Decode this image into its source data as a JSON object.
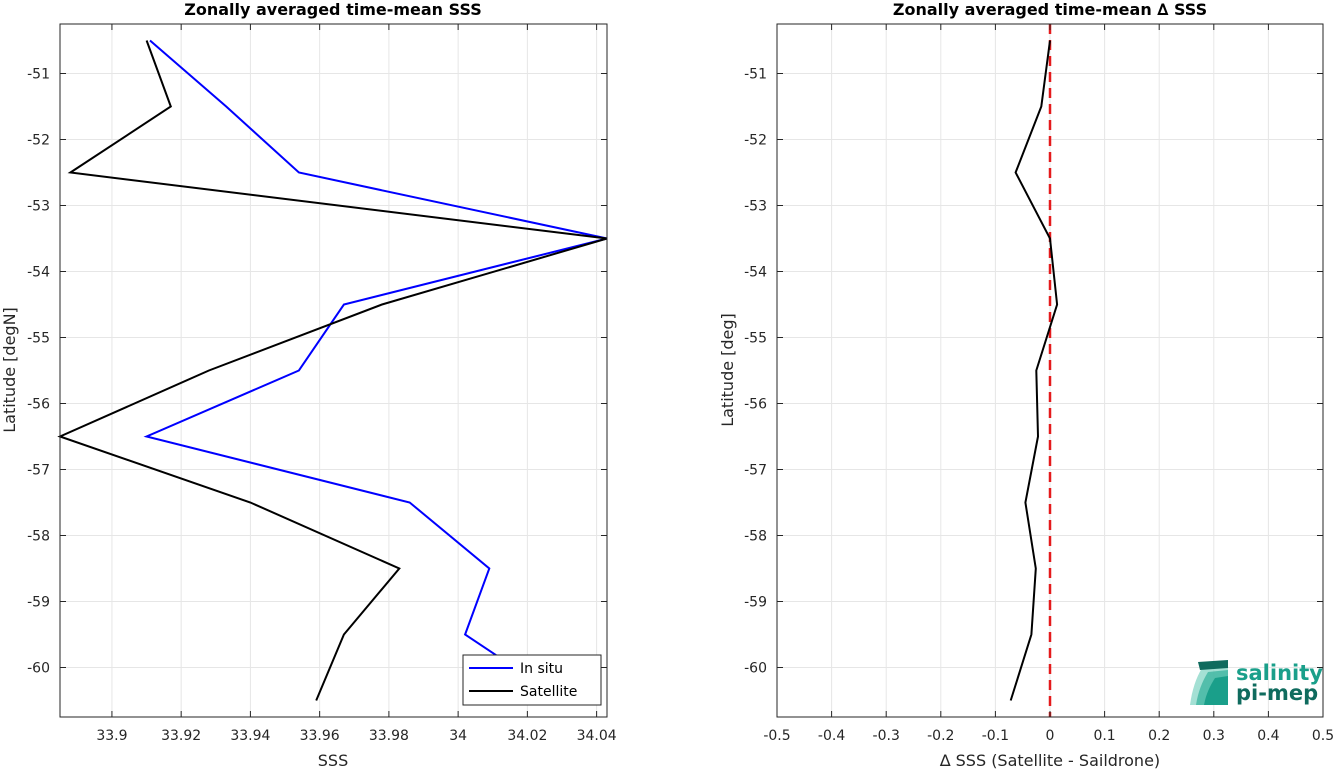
{
  "colors": {
    "in_situ": "#0000ff",
    "satellite": "#000000",
    "delta": "#000000",
    "zero_line": "#e41a1c",
    "grid": "#e6e6e6",
    "logo_teal": "#1a9f8a",
    "logo_dark": "#0f6b5e"
  },
  "logo": {
    "line1": "salinity",
    "line2": "pi-mep",
    "icon": "salinity-waves-icon"
  },
  "chart_data": [
    {
      "type": "line",
      "title": "Zonally averaged time-mean SSS",
      "xlabel": "SSS",
      "ylabel": "Latitude [degN]",
      "xlim": [
        33.885,
        34.043
      ],
      "ylim": [
        -60.75,
        -50.25
      ],
      "grid": true,
      "legend_position": "bottom-right",
      "xticks": [
        33.9,
        33.92,
        33.94,
        33.96,
        33.98,
        34,
        34.02,
        34.04
      ],
      "xtick_labels": [
        "33.9",
        "33.92",
        "33.94",
        "33.96",
        "33.98",
        "34",
        "34.02",
        "34.04"
      ],
      "yticks": [
        -51,
        -52,
        -53,
        -54,
        -55,
        -56,
        -57,
        -58,
        -59,
        -60
      ],
      "ytick_labels": [
        "-51",
        "-52",
        "-53",
        "-54",
        "-55",
        "-56",
        "-57",
        "-58",
        "-59",
        "-60"
      ],
      "series": [
        {
          "name": "In situ",
          "color_key": "in_situ",
          "x": [
            33.911,
            33.933,
            33.954,
            34.043,
            33.967,
            33.954,
            33.91,
            33.986,
            34.009,
            34.002,
            34.012
          ],
          "y": [
            -50.5,
            -51.5,
            -52.5,
            -53.5,
            -54.5,
            -55.5,
            -56.5,
            -57.5,
            -58.5,
            -59.5,
            -59.85
          ]
        },
        {
          "name": "Satellite",
          "color_key": "satellite",
          "x": [
            33.91,
            33.917,
            33.888,
            34.043,
            33.978,
            33.928,
            33.885,
            33.94,
            33.983,
            33.967,
            33.959
          ],
          "y": [
            -50.5,
            -51.5,
            -52.5,
            -53.5,
            -54.5,
            -55.5,
            -56.5,
            -57.5,
            -58.5,
            -59.5,
            -60.5
          ]
        }
      ]
    },
    {
      "type": "line",
      "title": "Zonally averaged time-mean ∆ SSS",
      "xlabel": "∆ SSS (Satellite - Saildrone)",
      "ylabel": "Latitude [deg]",
      "xlim": [
        -0.5,
        0.5
      ],
      "ylim": [
        -60.75,
        -50.25
      ],
      "grid": true,
      "xticks": [
        -0.5,
        -0.4,
        -0.3,
        -0.2,
        -0.1,
        0,
        0.1,
        0.2,
        0.3,
        0.4,
        0.5
      ],
      "xtick_labels": [
        "-0.5",
        "-0.4",
        "-0.3",
        "-0.2",
        "-0.1",
        "0",
        "0.1",
        "0.2",
        "0.3",
        "0.4",
        "0.5"
      ],
      "yticks": [
        -51,
        -52,
        -53,
        -54,
        -55,
        -56,
        -57,
        -58,
        -59,
        -60
      ],
      "ytick_labels": [
        "-51",
        "-52",
        "-53",
        "-54",
        "-55",
        "-56",
        "-57",
        "-58",
        "-59",
        "-60"
      ],
      "reference_line_x": 0,
      "series": [
        {
          "color_key": "delta",
          "x": [
            0.0,
            -0.016,
            -0.063,
            0.0,
            0.013,
            -0.025,
            -0.022,
            -0.045,
            -0.026,
            -0.034,
            -0.072
          ],
          "y": [
            -50.5,
            -51.5,
            -52.5,
            -53.5,
            -54.5,
            -55.5,
            -56.5,
            -57.5,
            -58.5,
            -59.5,
            -60.5
          ]
        }
      ]
    }
  ]
}
